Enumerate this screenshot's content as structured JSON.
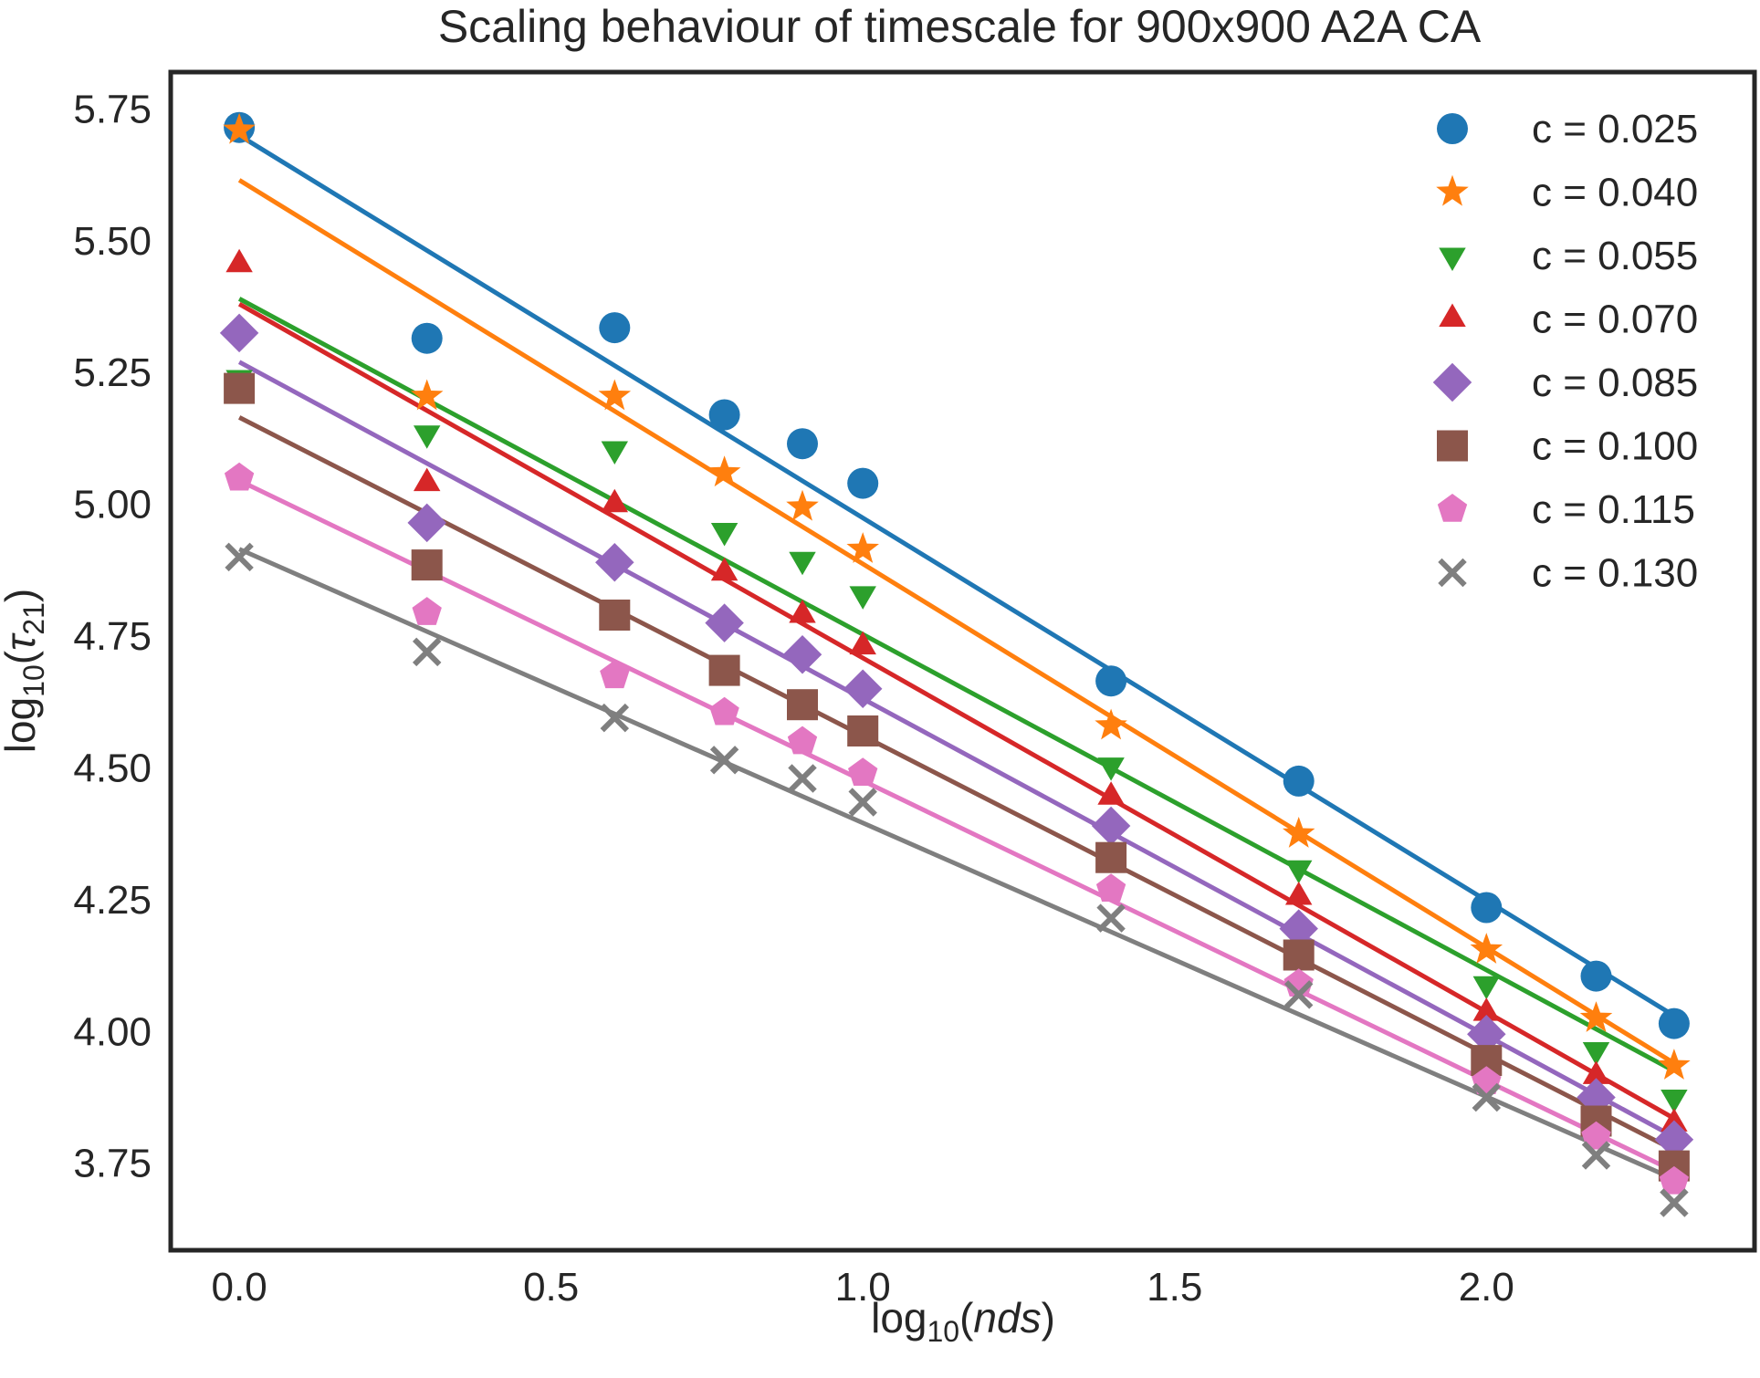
{
  "chart_data": {
    "type": "scatter",
    "title": "Scaling behaviour of timescale for 900x900 A2A CA",
    "xlabel": {
      "prefix": "log",
      "sub": "10",
      "arg": "nds"
    },
    "ylabel": {
      "prefix": "log",
      "sub": "10",
      "arg": "τ",
      "arg_sub": "21"
    },
    "xlim": [
      -0.11,
      2.43
    ],
    "ylim": [
      3.585,
      5.82
    ],
    "xticks": [
      0.0,
      0.5,
      1.0,
      1.5,
      2.0
    ],
    "xtick_labels": [
      "0.0",
      "0.5",
      "1.0",
      "1.5",
      "2.0"
    ],
    "yticks": [
      3.75,
      4.0,
      4.25,
      4.5,
      4.75,
      5.0,
      5.25,
      5.5,
      5.75
    ],
    "ytick_labels": [
      "3.75",
      "4.00",
      "4.25",
      "4.50",
      "4.75",
      "5.00",
      "5.25",
      "5.50",
      "5.75"
    ],
    "grid": false,
    "legend_position": "top-right",
    "x": [
      0.0,
      0.301,
      0.602,
      0.778,
      0.903,
      1.0,
      1.398,
      1.699,
      2.0,
      2.176,
      2.301
    ],
    "series": [
      {
        "name": "c = 0.025",
        "marker": "circle",
        "color": "#1f77b4",
        "values": [
          5.715,
          5.315,
          5.335,
          5.17,
          5.115,
          5.04,
          4.665,
          4.475,
          4.235,
          4.105,
          4.015
        ],
        "fit": [
          5.7,
          4.03
        ]
      },
      {
        "name": "c = 0.040",
        "marker": "star",
        "color": "#ff7f0e",
        "values": [
          5.71,
          5.205,
          5.205,
          5.06,
          4.995,
          4.915,
          4.58,
          4.375,
          4.155,
          4.025,
          3.935
        ],
        "fit": [
          5.615,
          3.94
        ]
      },
      {
        "name": "c = 0.055",
        "marker": "triangle-down",
        "color": "#2ca02c",
        "values": [
          5.24,
          5.135,
          5.105,
          4.95,
          4.895,
          4.83,
          4.505,
          4.31,
          4.09,
          3.965,
          3.875
        ],
        "fit": [
          5.39,
          3.925
        ]
      },
      {
        "name": "c = 0.070",
        "marker": "triangle-up",
        "color": "#d62728",
        "values": [
          5.455,
          5.04,
          5.0,
          4.87,
          4.79,
          4.73,
          4.445,
          4.255,
          4.035,
          3.915,
          3.825
        ],
        "fit": [
          5.38,
          3.835
        ]
      },
      {
        "name": "c = 0.085",
        "marker": "diamond",
        "color": "#9467bd",
        "values": [
          5.325,
          4.965,
          4.89,
          4.775,
          4.715,
          4.65,
          4.39,
          4.195,
          3.995,
          3.875,
          3.795
        ],
        "fit": [
          5.27,
          3.8
        ]
      },
      {
        "name": "c = 0.100",
        "marker": "square",
        "color": "#8c564b",
        "values": [
          5.22,
          4.885,
          4.79,
          4.685,
          4.62,
          4.57,
          4.33,
          4.145,
          3.945,
          3.83,
          3.745
        ],
        "fit": [
          5.165,
          3.775
        ]
      },
      {
        "name": "c = 0.115",
        "marker": "pentagon",
        "color": "#e377c2",
        "values": [
          5.05,
          4.795,
          4.675,
          4.605,
          4.55,
          4.49,
          4.27,
          4.09,
          3.905,
          3.8,
          3.715
        ],
        "fit": [
          5.045,
          3.735
        ]
      },
      {
        "name": "c = 0.130",
        "marker": "x",
        "color": "#7f7f7f",
        "values": [
          4.9,
          4.72,
          4.595,
          4.515,
          4.48,
          4.435,
          4.215,
          4.07,
          3.875,
          3.765,
          3.675
        ],
        "fit": [
          4.915,
          3.72
        ]
      }
    ]
  }
}
